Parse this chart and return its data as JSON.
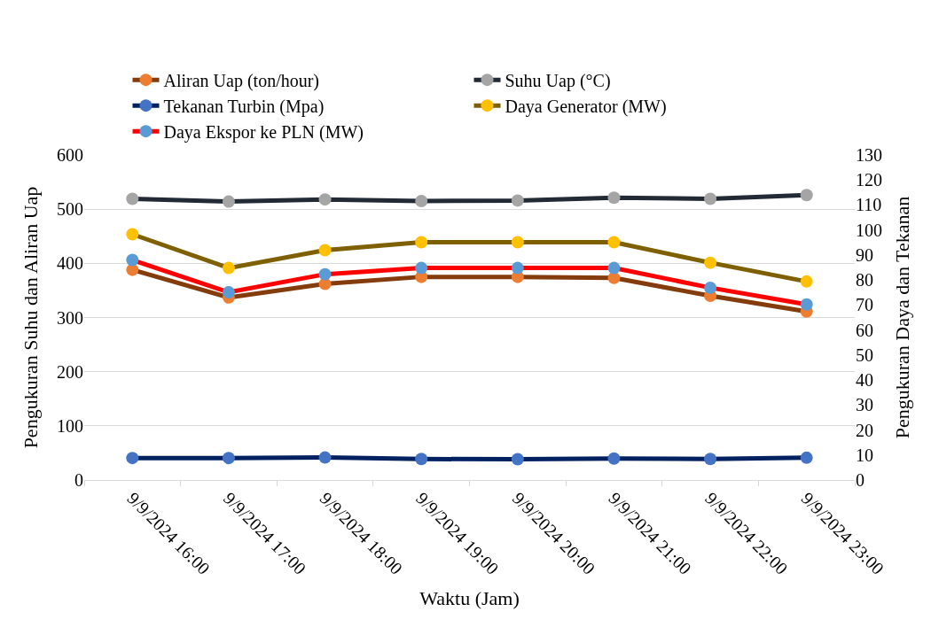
{
  "chart_data": {
    "type": "line",
    "xlabel": "Waktu (Jam)",
    "ylabel": "Pengukuran Suhu dan Aliran Uap",
    "y2label": "Pengukuran Daya dan Tekanan",
    "categories": [
      "9/9/2024 16:00",
      "9/9/2024 17:00",
      "9/9/2024 18:00",
      "9/9/2024 19:00",
      "9/9/2024 20:00",
      "9/9/2024 21:00",
      "9/9/2024 22:00",
      "9/9/2024 23:00"
    ],
    "series": [
      {
        "name": "Aliran Uap (ton/hour)",
        "color": "#843c0c",
        "colors": [
          "#ed7d31",
          "#ed7d31",
          "#ed7d31",
          "#ed7d31",
          "#ed7d31",
          "#ed7d31",
          "#ed7d31",
          "#ed7d31"
        ],
        "values": [
          388,
          337,
          362,
          375,
          375,
          373,
          340,
          311
        ]
      },
      {
        "name": "Suhu Uap (°C)",
        "color": "#222a35",
        "colors": [
          "#a5a5a5",
          "#a5a5a5",
          "#a5a5a5",
          "#a5a5a5",
          "#a5a5a5",
          "#a5a5a5",
          "#a5a5a5",
          "#a5a5a5"
        ],
        "values": [
          519,
          514,
          518,
          515,
          516,
          521,
          519,
          526
        ]
      },
      {
        "name": "Tekanan Turbin (Mpa)",
        "color": "#002060",
        "axis": "y2",
        "colors": [
          "#4472c4",
          "#4472c4",
          "#4472c4",
          "#4472c4",
          "#4472c4",
          "#4472c4",
          "#4472c4",
          "#4472c4"
        ],
        "values": [
          8.8,
          8.8,
          9.0,
          8.4,
          8.3,
          8.6,
          8.4,
          8.9
        ]
      },
      {
        "name": "Daya Generator (MW)",
        "color": "#7f6000",
        "axis": "y2",
        "colors": [
          "#ffc000",
          "#ffc000",
          "#ffc000",
          "#ffc000",
          "#ffc000",
          "#ffc000",
          "#ffc000",
          "#ffc000"
        ],
        "values": [
          98.3,
          84.8,
          91.9,
          95.1,
          95.1,
          95.1,
          86.9,
          79.4
        ]
      },
      {
        "name": "Daya Ekspor ke PLN (MW)",
        "color": "#ff0000",
        "axis": "y2",
        "colors": [
          "#5b9bd5",
          "#5b9bd5",
          "#5b9bd5",
          "#5b9bd5",
          "#5b9bd5",
          "#5b9bd5",
          "#5b9bd5",
          "#5b9bd5"
        ],
        "values": [
          88.0,
          75.1,
          82.3,
          84.8,
          84.8,
          84.8,
          76.9,
          70.2
        ]
      }
    ],
    "ylim": [
      0,
      600
    ],
    "yticks": [
      0,
      100,
      200,
      300,
      400,
      500,
      600
    ],
    "y2lim": [
      0,
      130
    ],
    "y2ticks": [
      0,
      10,
      20,
      30,
      40,
      50,
      60,
      70,
      80,
      90,
      100,
      110,
      120,
      130
    ],
    "grid": "y",
    "legend": "top",
    "marker": "circle",
    "line_style": "solid"
  }
}
